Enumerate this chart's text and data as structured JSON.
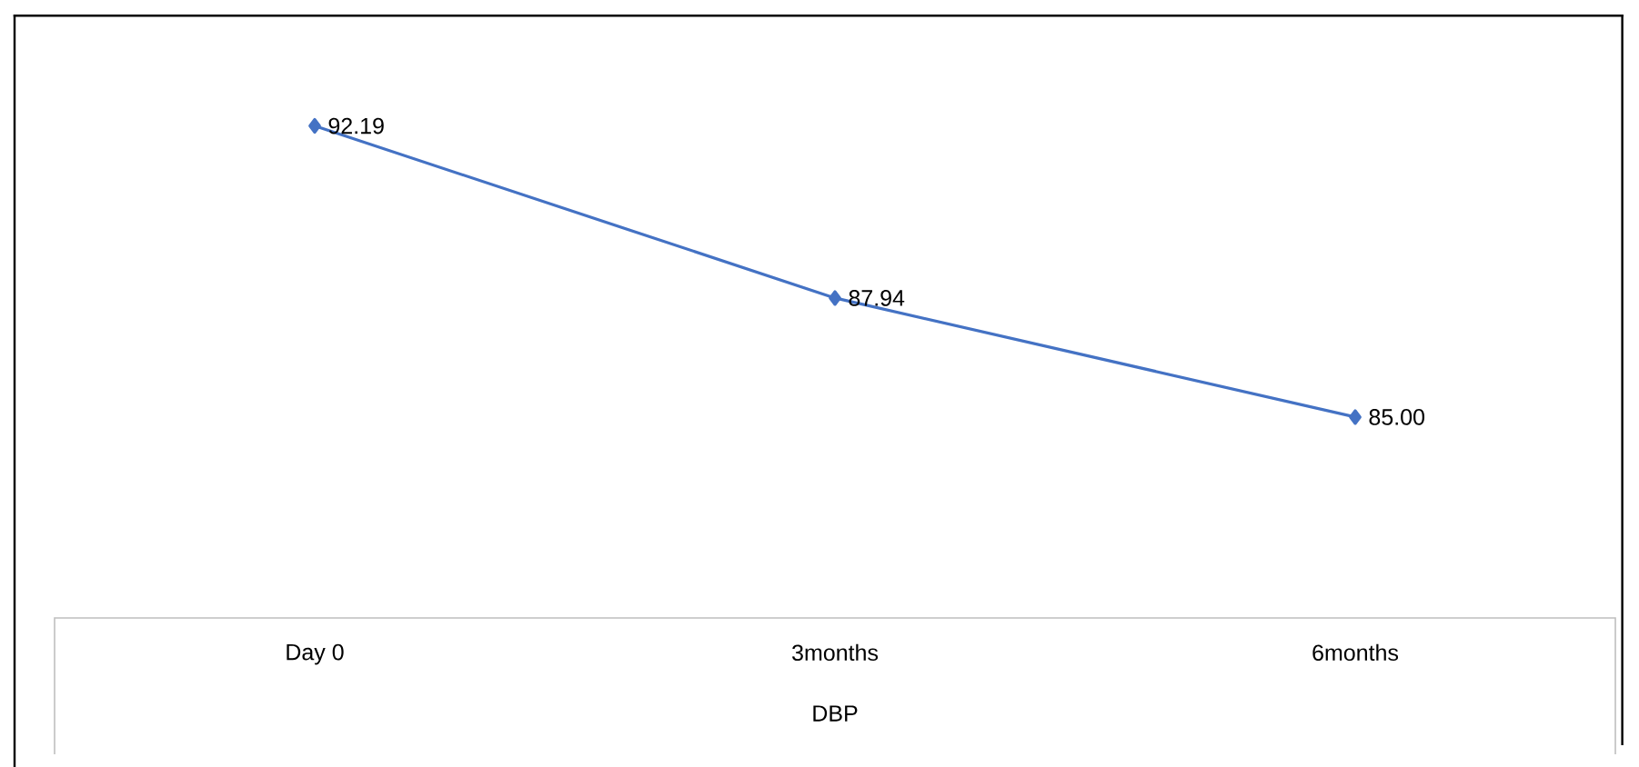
{
  "chart_data": {
    "type": "line",
    "categories": [
      "Day 0",
      "3months",
      "6months"
    ],
    "xlabel": "DBP",
    "series": [
      {
        "color": "#4472c4",
        "values": [
          92.19,
          87.94,
          85.0
        ],
        "value_labels": [
          "92.19",
          "87.94",
          "85.00"
        ]
      }
    ],
    "marker": "diamond",
    "line_style": "solid"
  }
}
